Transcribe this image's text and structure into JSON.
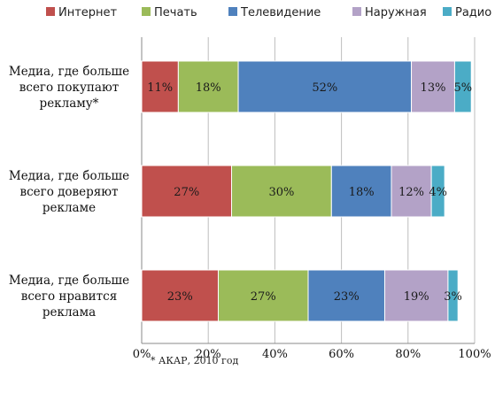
{
  "chart_data": {
    "type": "bar",
    "orientation": "horizontal",
    "stacked": true,
    "categories": [
      [
        "Медиа, где больше",
        "всего покупают",
        "рекламу*"
      ],
      [
        "Медиа, где больше",
        "всего доверяют",
        "рекламе"
      ],
      [
        "Медиа, где больше",
        "всего нравится",
        "реклама"
      ]
    ],
    "series": [
      {
        "name": "Интернет",
        "color": "#c0504d",
        "values": [
          11,
          27,
          23
        ]
      },
      {
        "name": "Печать",
        "color": "#9bbb59",
        "values": [
          18,
          30,
          27
        ]
      },
      {
        "name": "Телевидение",
        "color": "#4f81bd",
        "values": [
          52,
          18,
          23
        ]
      },
      {
        "name": "Наружная",
        "color": "#b3a2c7",
        "values": [
          13,
          12,
          19
        ]
      },
      {
        "name": "Радио",
        "color": "#4bacc6",
        "values": [
          5,
          4,
          3
        ]
      }
    ],
    "data_labels": [
      [
        "11%",
        "18%",
        "52%",
        "13%",
        "5%"
      ],
      [
        "27%",
        "30%",
        "18%",
        "12%",
        "4%"
      ],
      [
        "23%",
        "27%",
        "23%",
        "19%",
        "3%"
      ]
    ],
    "xlim": [
      0,
      100
    ],
    "x_ticks": [
      0,
      20,
      40,
      60,
      80,
      100
    ],
    "x_tick_labels": [
      "0%",
      "20%",
      "40%",
      "60%",
      "80%",
      "100%"
    ],
    "grid": "vertical",
    "legend_position": "top",
    "footnote": "* АКАР, 2010 год"
  }
}
